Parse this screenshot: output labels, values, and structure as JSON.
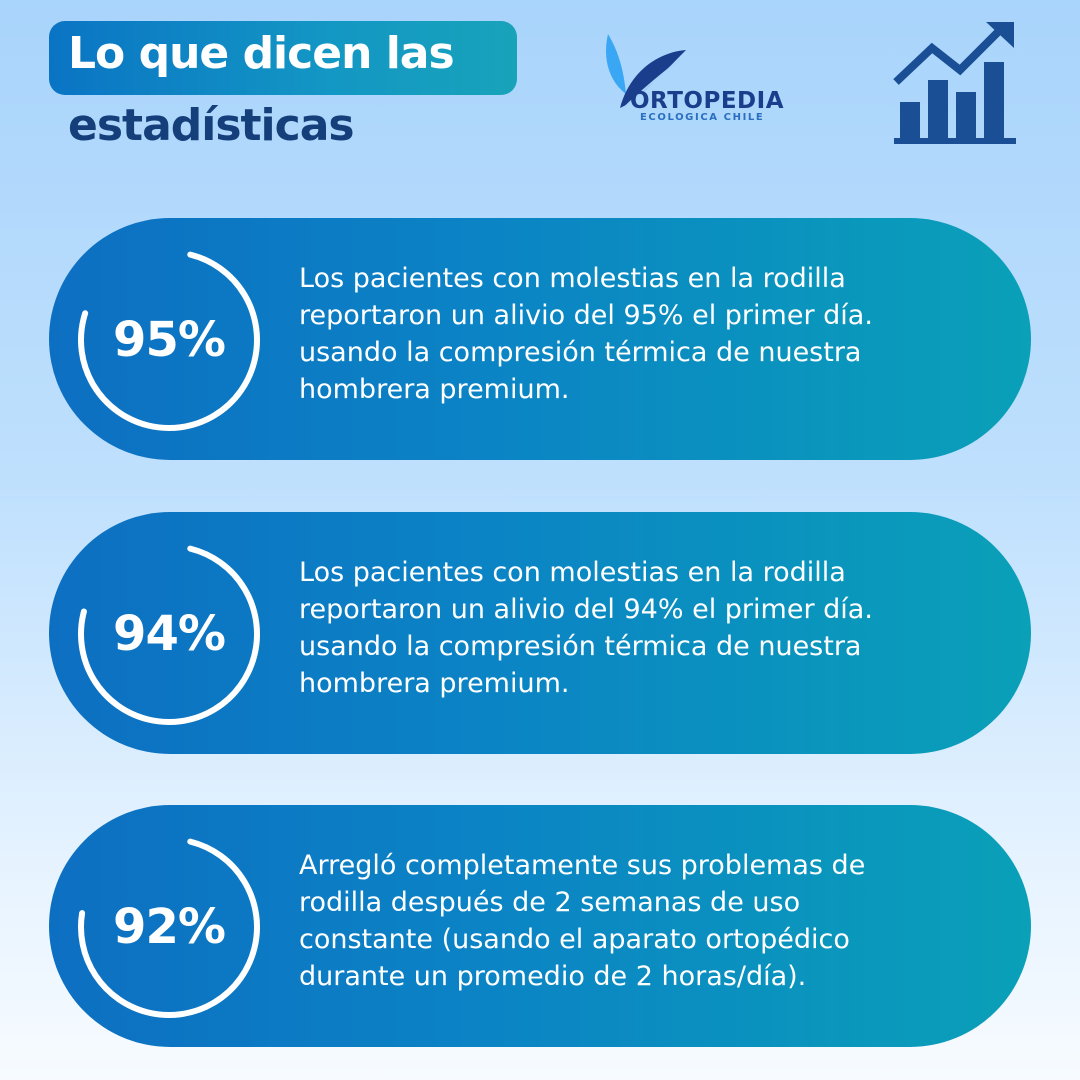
{
  "header": {
    "title_line1": "Lo que dicen las",
    "title_line2": "estadísticas"
  },
  "logo": {
    "name": "ORTOPEDIA",
    "subtitle": "ECOLOGICA CHILE",
    "icon": "leaf-logo-icon"
  },
  "decor": {
    "icon": "bar-chart-growth-icon",
    "color": "#1a4f96"
  },
  "colors": {
    "title_dark": "#153f7a",
    "card_start": "#0d6fc2",
    "card_end": "#0aa0b8"
  },
  "stats": [
    {
      "value": 95,
      "label": "95%",
      "lines": [
        "Los pacientes con molestias en la rodilla",
        "reportaron un alivio del 95% el primer día.",
        "usando la compresión térmica de nuestra",
        "hombrera premium."
      ]
    },
    {
      "value": 94,
      "label": "94%",
      "lines": [
        "Los pacientes con molestias en la rodilla",
        "reportaron un alivio del 94% el primer día.",
        "usando la compresión térmica de nuestra",
        "hombrera premium."
      ]
    },
    {
      "value": 92,
      "label": "92%",
      "lines": [
        "Arregló completamente sus problemas de",
        "rodilla después de 2 semanas de uso",
        "constante (usando el aparato ortopédico",
        "durante un promedio de 2 horas/día)."
      ]
    }
  ]
}
